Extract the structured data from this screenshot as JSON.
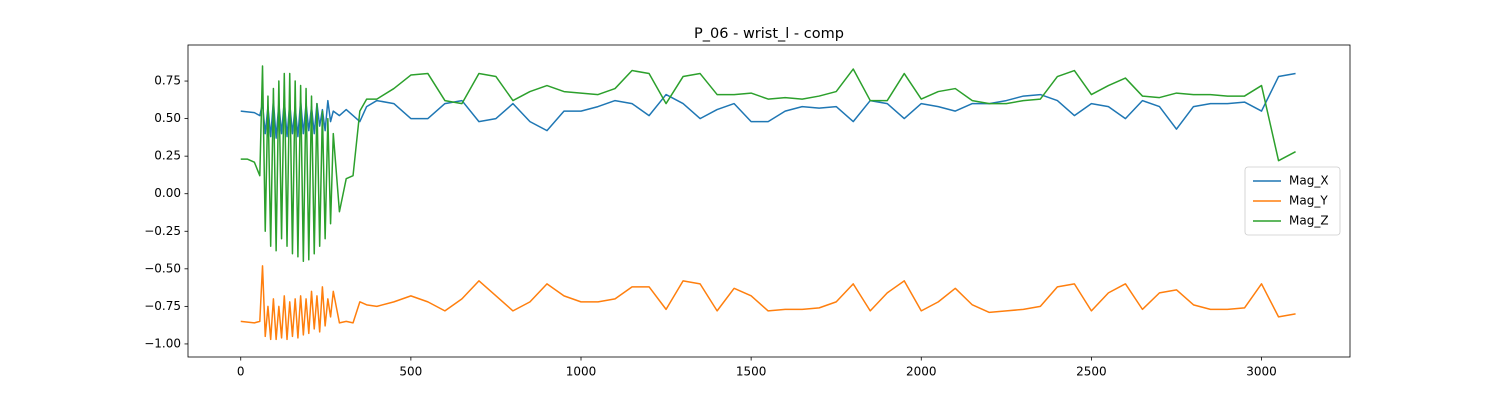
{
  "chart_data": {
    "type": "line",
    "title": "P_06 - wrist_l - comp",
    "x": [
      0,
      20,
      40,
      56,
      64,
      72,
      80,
      88,
      96,
      104,
      112,
      120,
      128,
      136,
      144,
      152,
      160,
      168,
      176,
      184,
      192,
      200,
      208,
      216,
      224,
      232,
      240,
      248,
      256,
      264,
      272,
      290,
      310,
      330,
      350,
      370,
      400,
      450,
      500,
      550,
      600,
      650,
      700,
      750,
      800,
      850,
      900,
      950,
      1000,
      1050,
      1100,
      1150,
      1200,
      1250,
      1300,
      1350,
      1400,
      1450,
      1500,
      1550,
      1600,
      1650,
      1700,
      1750,
      1800,
      1850,
      1900,
      1950,
      2000,
      2050,
      2100,
      2150,
      2200,
      2250,
      2300,
      2350,
      2400,
      2450,
      2500,
      2550,
      2600,
      2650,
      2700,
      2750,
      2800,
      2850,
      2900,
      2950,
      3000,
      3050,
      3100
    ],
    "series": [
      {
        "name": "Mag_X",
        "color": "#1f77b4",
        "values": [
          0.55,
          0.545,
          0.54,
          0.52,
          0.6,
          0.4,
          0.58,
          0.38,
          0.62,
          0.37,
          0.6,
          0.4,
          0.62,
          0.38,
          0.6,
          0.4,
          0.58,
          0.38,
          0.62,
          0.4,
          0.6,
          0.42,
          0.58,
          0.4,
          0.6,
          0.45,
          0.56,
          0.42,
          0.62,
          0.48,
          0.55,
          0.52,
          0.56,
          0.52,
          0.48,
          0.58,
          0.62,
          0.6,
          0.5,
          0.5,
          0.6,
          0.62,
          0.48,
          0.5,
          0.6,
          0.48,
          0.42,
          0.55,
          0.55,
          0.58,
          0.62,
          0.6,
          0.52,
          0.66,
          0.6,
          0.5,
          0.56,
          0.6,
          0.48,
          0.48,
          0.55,
          0.58,
          0.57,
          0.58,
          0.48,
          0.62,
          0.6,
          0.5,
          0.6,
          0.58,
          0.55,
          0.6,
          0.6,
          0.62,
          0.65,
          0.66,
          0.62,
          0.52,
          0.6,
          0.58,
          0.5,
          0.62,
          0.58,
          0.43,
          0.58,
          0.6,
          0.6,
          0.61,
          0.55,
          0.78,
          0.8
        ]
      },
      {
        "name": "Mag_Y",
        "color": "#ff7f0e",
        "values": [
          -0.85,
          -0.855,
          -0.86,
          -0.85,
          -0.48,
          -0.95,
          -0.75,
          -0.97,
          -0.7,
          -0.97,
          -0.75,
          -0.96,
          -0.68,
          -0.97,
          -0.72,
          -0.95,
          -0.7,
          -0.96,
          -0.68,
          -0.94,
          -0.7,
          -0.93,
          -0.65,
          -0.9,
          -0.68,
          -0.92,
          -0.62,
          -0.88,
          -0.7,
          -0.82,
          -0.65,
          -0.86,
          -0.85,
          -0.86,
          -0.72,
          -0.74,
          -0.75,
          -0.72,
          -0.68,
          -0.72,
          -0.78,
          -0.7,
          -0.58,
          -0.68,
          -0.78,
          -0.72,
          -0.6,
          -0.68,
          -0.72,
          -0.72,
          -0.7,
          -0.62,
          -0.62,
          -0.77,
          -0.58,
          -0.6,
          -0.78,
          -0.63,
          -0.68,
          -0.78,
          -0.77,
          -0.77,
          -0.76,
          -0.72,
          -0.6,
          -0.78,
          -0.66,
          -0.58,
          -0.78,
          -0.72,
          -0.63,
          -0.74,
          -0.79,
          -0.78,
          -0.77,
          -0.75,
          -0.62,
          -0.6,
          -0.78,
          -0.66,
          -0.6,
          -0.77,
          -0.66,
          -0.64,
          -0.74,
          -0.77,
          -0.77,
          -0.76,
          -0.6,
          -0.82,
          -0.8
        ]
      },
      {
        "name": "Mag_Z",
        "color": "#2ca02c",
        "values": [
          0.23,
          0.23,
          0.21,
          0.12,
          0.85,
          -0.25,
          0.65,
          -0.35,
          0.7,
          -0.38,
          0.75,
          -0.3,
          0.8,
          -0.35,
          0.8,
          -0.4,
          0.75,
          -0.42,
          0.72,
          -0.45,
          0.7,
          -0.44,
          0.65,
          -0.4,
          0.6,
          -0.35,
          0.55,
          -0.3,
          0.5,
          -0.2,
          0.4,
          -0.12,
          0.1,
          0.12,
          0.55,
          0.63,
          0.63,
          0.7,
          0.79,
          0.8,
          0.62,
          0.6,
          0.8,
          0.78,
          0.62,
          0.68,
          0.72,
          0.68,
          0.67,
          0.66,
          0.7,
          0.82,
          0.8,
          0.6,
          0.78,
          0.8,
          0.66,
          0.66,
          0.67,
          0.63,
          0.64,
          0.63,
          0.65,
          0.68,
          0.83,
          0.62,
          0.62,
          0.8,
          0.63,
          0.68,
          0.7,
          0.62,
          0.6,
          0.6,
          0.62,
          0.63,
          0.78,
          0.82,
          0.66,
          0.72,
          0.77,
          0.65,
          0.64,
          0.67,
          0.66,
          0.66,
          0.65,
          0.65,
          0.72,
          0.22,
          0.28
        ]
      }
    ],
    "xlim": [
      -155,
      3260
    ],
    "xticks": [
      0,
      500,
      1000,
      1500,
      2000,
      2500,
      3000
    ],
    "ylim": [
      -1.087,
      0.99
    ],
    "yticks": [
      {
        "value": -1,
        "label": "−1.00"
      },
      {
        "value": -0.75,
        "label": "−0.75"
      },
      {
        "value": -0.5,
        "label": "−0.50"
      },
      {
        "value": -0.25,
        "label": "−0.25"
      },
      {
        "value": 0,
        "label": "0.00"
      },
      {
        "value": 0.25,
        "label": "0.25"
      },
      {
        "value": 0.5,
        "label": "0.50"
      },
      {
        "value": 0.75,
        "label": "0.75"
      }
    ],
    "legend": "center right"
  }
}
